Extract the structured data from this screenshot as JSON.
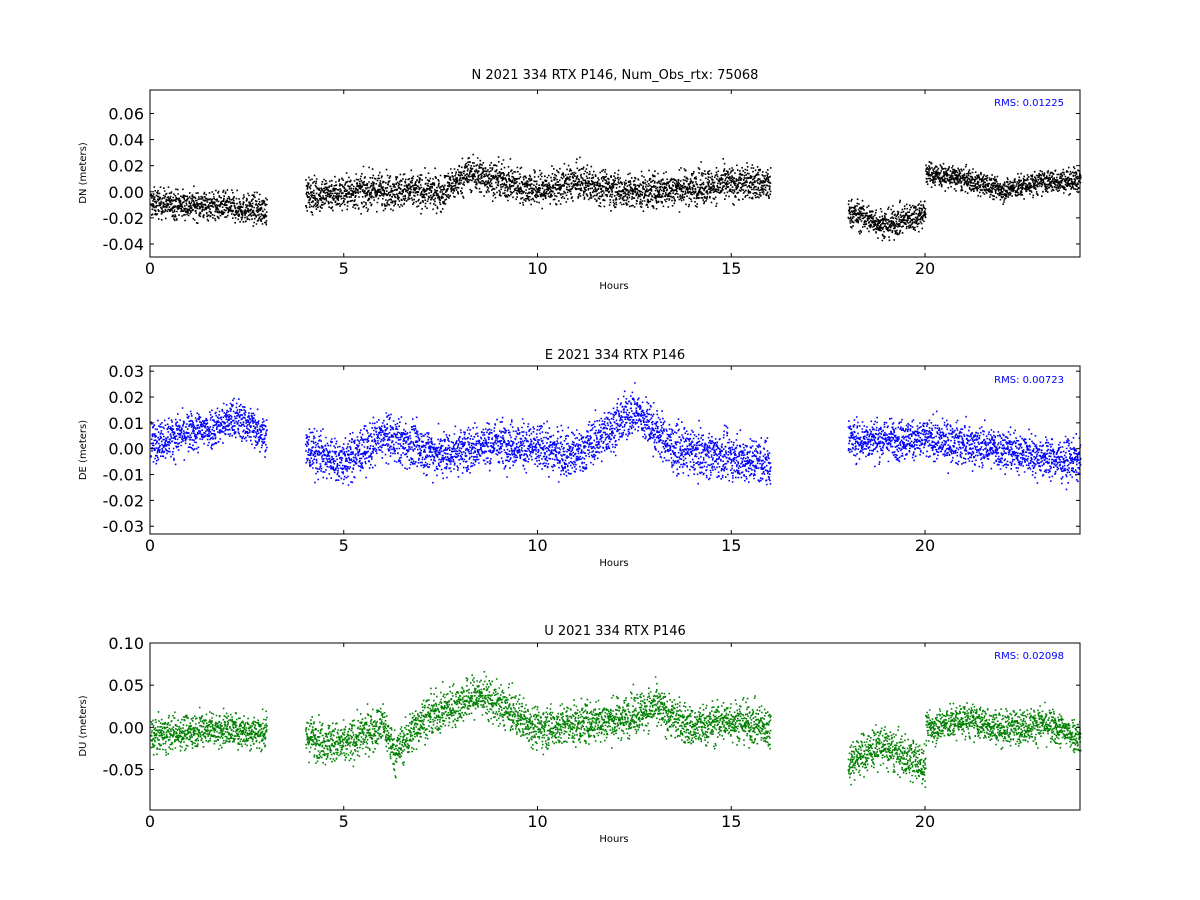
{
  "chart_data": [
    {
      "type": "scatter",
      "title": "N 2021 334 RTX  P146, Num_Obs_rtx: 75068",
      "xlabel": "Hours",
      "ylabel": "DN (meters)",
      "xlim": [
        0,
        24
      ],
      "ylim": [
        -0.05,
        0.078
      ],
      "xticks": [
        "0",
        "5",
        "10",
        "15",
        "20"
      ],
      "yticks": [
        "-0.04",
        "-0.02",
        "0.00",
        "0.02",
        "0.04",
        "0.06"
      ],
      "rms_label": "RMS:  0.01225",
      "color": "#000000",
      "series": [
        {
          "segments": [
            {
              "start": 0.0,
              "end": 3.0,
              "trend": [
                [
                  0,
                  -0.008
                ],
                [
                  1.5,
                  -0.01
                ],
                [
                  3.0,
                  -0.014
                ]
              ],
              "spread": 0.01
            },
            {
              "start": 4.0,
              "end": 16.0,
              "trend": [
                [
                  4,
                  -0.002
                ],
                [
                  6,
                  0.002
                ],
                [
                  7.5,
                  0.0
                ],
                [
                  8.2,
                  0.015
                ],
                [
                  10,
                  0.002
                ],
                [
                  11,
                  0.008
                ],
                [
                  12.5,
                  0.0
                ],
                [
                  14,
                  0.004
                ],
                [
                  15.5,
                  0.008
                ],
                [
                  16,
                  0.005
                ]
              ],
              "spread": 0.012
            },
            {
              "start": 18.0,
              "end": 20.0,
              "trend": [
                [
                  18,
                  -0.015
                ],
                [
                  19,
                  -0.025
                ],
                [
                  20,
                  -0.015
                ]
              ],
              "spread": 0.01
            },
            {
              "start": 20.0,
              "end": 24.0,
              "trend": [
                [
                  20,
                  0.015
                ],
                [
                  21,
                  0.01
                ],
                [
                  22,
                  0.002
                ],
                [
                  23,
                  0.008
                ],
                [
                  24,
                  0.01
                ]
              ],
              "spread": 0.008
            }
          ]
        }
      ]
    },
    {
      "type": "scatter",
      "title": "E 2021 334 RTX  P146",
      "xlabel": "Hours",
      "ylabel": "DE (meters)",
      "xlim": [
        0,
        24
      ],
      "ylim": [
        -0.033,
        0.032
      ],
      "xticks": [
        "0",
        "5",
        "10",
        "15",
        "20"
      ],
      "yticks": [
        "-0.03",
        "-0.02",
        "-0.01",
        "0.00",
        "0.01",
        "0.02",
        "0.03"
      ],
      "rms_label": "RMS:  0.00723",
      "color": "#0000ff",
      "series": [
        {
          "segments": [
            {
              "start": 0.0,
              "end": 3.0,
              "trend": [
                [
                  0,
                  0.003
                ],
                [
                  1.5,
                  0.008
                ],
                [
                  2.2,
                  0.012
                ],
                [
                  3.0,
                  0.006
                ]
              ],
              "spread": 0.007
            },
            {
              "start": 4.0,
              "end": 16.0,
              "trend": [
                [
                  4,
                  0.0
                ],
                [
                  5,
                  -0.005
                ],
                [
                  6,
                  0.005
                ],
                [
                  7.5,
                  -0.002
                ],
                [
                  9,
                  0.003
                ],
                [
                  11,
                  -0.002
                ],
                [
                  12.5,
                  0.015
                ],
                [
                  13.5,
                  0.0
                ],
                [
                  15,
                  -0.003
                ],
                [
                  16,
                  -0.005
                ]
              ],
              "spread": 0.008
            },
            {
              "start": 18.0,
              "end": 24.0,
              "trend": [
                [
                  18,
                  0.004
                ],
                [
                  20,
                  0.004
                ],
                [
                  22,
                  0.0
                ],
                [
                  23.5,
                  -0.004
                ],
                [
                  24,
                  -0.004
                ]
              ],
              "spread": 0.007
            }
          ]
        }
      ]
    },
    {
      "type": "scatter",
      "title": "U 2021 334 RTX  P146",
      "xlabel": "Hours",
      "ylabel": "DU (meters)",
      "xlim": [
        0,
        24
      ],
      "ylim": [
        -0.098,
        0.1
      ],
      "xticks": [
        "0",
        "5",
        "10",
        "15",
        "20"
      ],
      "yticks": [
        "-0.05",
        "0.00",
        "0.05",
        "0.10"
      ],
      "rms_label": "RMS:  0.02098",
      "color": "#008000",
      "series": [
        {
          "segments": [
            {
              "start": 0.0,
              "end": 3.0,
              "trend": [
                [
                  0,
                  -0.01
                ],
                [
                  1.5,
                  0.0
                ],
                [
                  3.0,
                  -0.005
                ]
              ],
              "spread": 0.018
            },
            {
              "start": 4.0,
              "end": 16.0,
              "trend": [
                [
                  4,
                  -0.01
                ],
                [
                  5,
                  -0.02
                ],
                [
                  6,
                  0.005
                ],
                [
                  6.3,
                  -0.03
                ],
                [
                  7,
                  0.01
                ],
                [
                  8.5,
                  0.04
                ],
                [
                  10,
                  0.0
                ],
                [
                  12,
                  0.01
                ],
                [
                  13,
                  0.025
                ],
                [
                  14,
                  0.0
                ],
                [
                  15,
                  0.01
                ],
                [
                  16,
                  0.0
                ]
              ],
              "spread": 0.022
            },
            {
              "start": 18.0,
              "end": 20.0,
              "trend": [
                [
                  18,
                  -0.04
                ],
                [
                  18.8,
                  -0.02
                ],
                [
                  20,
                  -0.045
                ]
              ],
              "spread": 0.022
            },
            {
              "start": 20.0,
              "end": 24.0,
              "trend": [
                [
                  20,
                  0.0
                ],
                [
                  21,
                  0.01
                ],
                [
                  22,
                  0.0
                ],
                [
                  23,
                  0.005
                ],
                [
                  24,
                  -0.01
                ]
              ],
              "spread": 0.018
            }
          ]
        }
      ]
    }
  ]
}
